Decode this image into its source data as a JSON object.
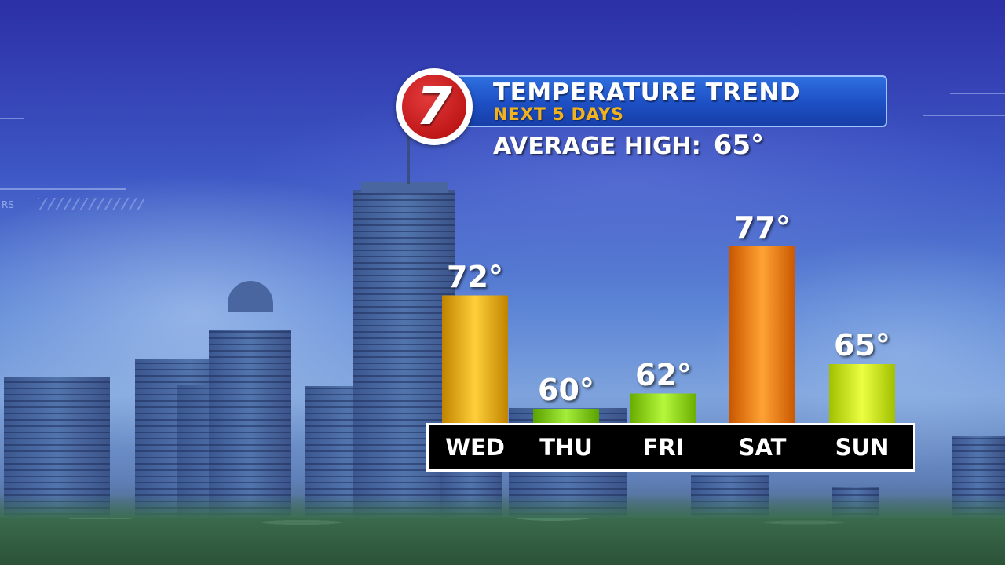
{
  "header": {
    "logo_text": "7",
    "title": "TEMPERATURE TREND",
    "subtitle": "NEXT 5 DAYS"
  },
  "average": {
    "label": "AVERAGE HIGH:",
    "value": "65°"
  },
  "background": {
    "hud_text": "RS"
  },
  "colors": {
    "title_bar": "#1d4fc4",
    "subtitle": "#f2b21c",
    "logo": "#c01818",
    "strip": "#000000"
  },
  "chart_data": {
    "type": "bar",
    "categories": [
      "WED",
      "THU",
      "FRI",
      "SAT",
      "SUN"
    ],
    "values": [
      72,
      60,
      62,
      77,
      65
    ],
    "value_labels": [
      "72°",
      "60°",
      "62°",
      "77°",
      "65°"
    ],
    "bar_colors": [
      "#e3a712",
      "#7dc512",
      "#8dd014",
      "#ec7a0c",
      "#c4e21a"
    ],
    "title": "TEMPERATURE TREND",
    "subtitle": "NEXT 5 DAYS",
    "xlabel": "",
    "ylabel": "",
    "ylim": [
      58,
      82
    ],
    "grid": false,
    "legend": "none"
  }
}
